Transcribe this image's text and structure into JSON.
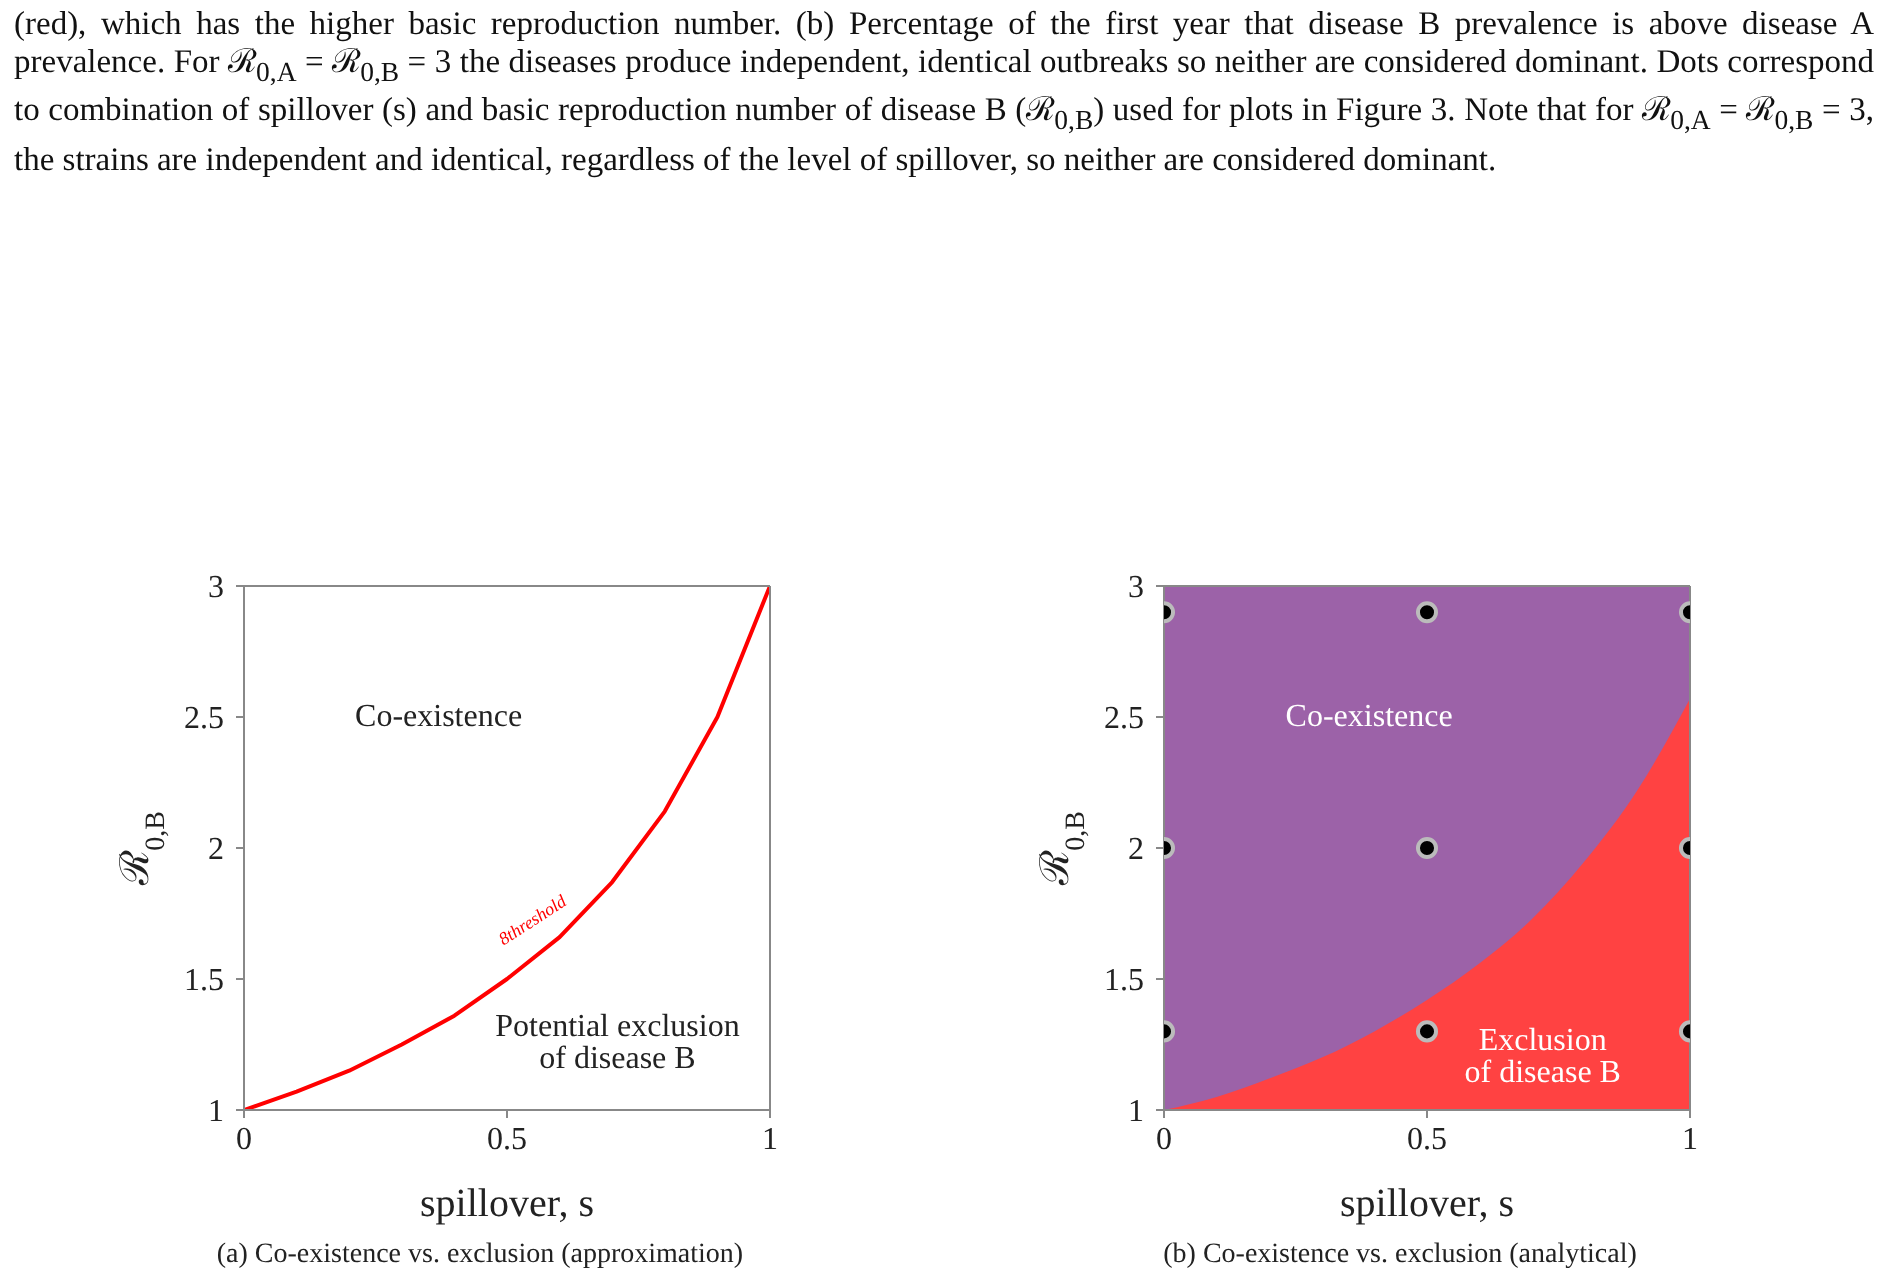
{
  "chart_data": [
    {
      "type": "line",
      "title": "(a) Co-existence vs. exclusion (approximation)",
      "xlabel": "spillover, s",
      "ylabel": "ℛ$_{0,B}$",
      "xlim": [
        0,
        1
      ],
      "xticks": [
        0,
        0.5,
        1
      ],
      "ylim": [
        1,
        3
      ],
      "yticks": [
        1,
        1.5,
        2,
        2.5,
        3
      ],
      "x": [
        0,
        0.1,
        0.2,
        0.3,
        0.4,
        0.5,
        0.6,
        0.7,
        0.8,
        0.9,
        1
      ],
      "series": [
        {
          "color": "#ff0000",
          "values": [
            1,
            1.07,
            1.15,
            1.25,
            1.36,
            1.5,
            1.66,
            1.87,
            2.14,
            2.5,
            3
          ]
        }
      ],
      "annotations": [
        "(red), which has the higher basic reproduction number. (b) Percentage of the first year that disease B prevalence is above disease A prevalence. For ℛ$_{0,A}$ = ℛ$_{0,B}$ = 3 the diseases produce independent, identical outbreaks so neither are considered dominant. Dots correspond to combination of spillover (s) and basic reproduction number of disease B (ℛ$_{0,B}$) used for plots in Figure 3. Note that for ℛ$_{0,A}$ = ℛ$_{0,B}$ = 3, the strains are independent and identical, regardless of the level of spillover, so neither are considered dominant.",
        "Co-existence",
        "Potential exclusion\nof disease B",
        {
          "text": "8threshold",
          "x": 0.6,
          "y": 1.66
        }
      ]
    },
    {
      "type": "area",
      "title": "(b) Co-existence vs. exclusion (analytical)",
      "xlabel": "spillover, s",
      "ylabel": "ℛ$_{0,B}$",
      "xlim": [
        0,
        1
      ],
      "xticks": [
        0,
        0.5,
        1
      ],
      "ylim": [
        1,
        3
      ],
      "yticks": [
        1,
        1.5,
        2,
        2.5,
        3
      ],
      "x": [
        0,
        0.1,
        0.2,
        0.3,
        0.4,
        0.5,
        0.6,
        0.7,
        0.8,
        0.9,
        1
      ],
      "series": [
        {
          "color": "#ff4242",
          "values": [
            1,
            1.05,
            1.12,
            1.2,
            1.3,
            1.42,
            1.56,
            1.73,
            1.95,
            2.22,
            2.57
          ]
        },
        {
          "type": "scatter",
          "color": "#000000",
          "marker": "circle",
          "x": [
            0,
            0,
            0,
            0.5,
            0.5,
            0.5,
            1,
            1,
            1
          ],
          "values": [
            2.9,
            2,
            1.3,
            2.9,
            2,
            1.3,
            2.9,
            2,
            1.3
          ]
        }
      ],
      "bands": [
        {
          "axis": "y",
          "from": 1,
          "to": 3,
          "color": "#9c62a8"
        }
      ],
      "annotations": [
        "Co-existence",
        "Exclusion\nof disease B"
      ]
    }
  ]
}
